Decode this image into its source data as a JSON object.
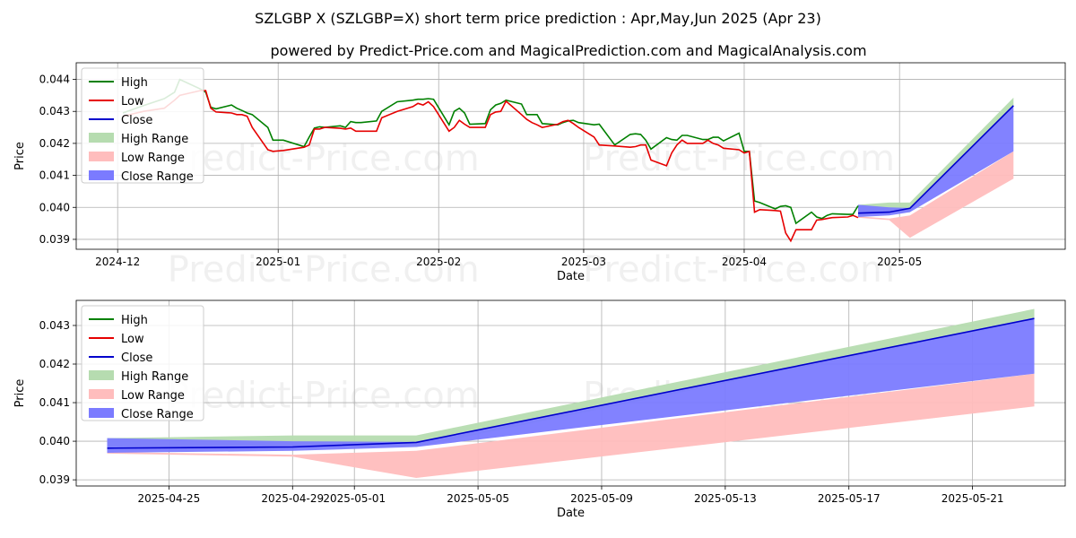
{
  "title": "SZLGBP X (SZLGBP=X) short term price prediction : Apr,May,Jun 2025 (Apr 23)",
  "subtitle": "powered by Predict-Price.com and MagicalPrediction.com and MagicalAnalysis.com",
  "watermark": "Predict-Price.com",
  "colors": {
    "high": "#008000",
    "low": "#e60000",
    "close": "#0000cc",
    "high_range": "#b6dcb0",
    "low_range": "#ffbdbd",
    "close_range": "#7b7bff"
  },
  "chart_data": [
    {
      "type": "line",
      "xlabel": "Date",
      "ylabel": "Price",
      "xticks": [
        "2024-12",
        "2025-01",
        "2025-02",
        "2025-03",
        "2025-04",
        "2025-05"
      ],
      "yticks": [
        "0.039",
        "0.040",
        "0.041",
        "0.042",
        "0.043",
        "0.044"
      ],
      "xlim": [
        "2024-11-23",
        "2025-06-02"
      ],
      "ylim": [
        0.03869,
        0.04452
      ],
      "grid": true,
      "legend": "top-left",
      "legend_entries": [
        "High",
        "Low",
        "Close",
        "High Range",
        "Low Range",
        "Close Range"
      ],
      "series": [
        {
          "name": "High",
          "x": [
            "2024-12-02",
            "2024-12-06",
            "2024-12-10",
            "2024-12-12",
            "2024-12-13",
            "2024-12-17",
            "2024-12-18",
            "2024-12-19",
            "2024-12-20",
            "2024-12-23",
            "2024-12-24",
            "2024-12-25",
            "2024-12-26",
            "2024-12-27",
            "2024-12-30",
            "2024-12-31",
            "2025-01-02",
            "2025-01-06",
            "2025-01-07",
            "2025-01-08",
            "2025-01-09",
            "2025-01-10",
            "2025-01-13",
            "2025-01-14",
            "2025-01-15",
            "2025-01-16",
            "2025-01-17",
            "2025-01-20",
            "2025-01-21",
            "2025-01-24",
            "2025-01-27",
            "2025-01-28",
            "2025-01-29",
            "2025-01-30",
            "2025-01-31",
            "2025-02-03",
            "2025-02-04",
            "2025-02-05",
            "2025-02-06",
            "2025-02-07",
            "2025-02-10",
            "2025-02-11",
            "2025-02-12",
            "2025-02-13",
            "2025-02-14",
            "2025-02-17",
            "2025-02-18",
            "2025-02-19",
            "2025-02-20",
            "2025-02-21",
            "2025-02-24",
            "2025-02-25",
            "2025-02-26",
            "2025-02-27",
            "2025-02-28",
            "2025-03-03",
            "2025-03-04",
            "2025-03-07",
            "2025-03-10",
            "2025-03-11",
            "2025-03-12",
            "2025-03-13",
            "2025-03-14",
            "2025-03-17",
            "2025-03-18",
            "2025-03-19",
            "2025-03-20",
            "2025-03-21",
            "2025-03-24",
            "2025-03-25",
            "2025-03-26",
            "2025-03-27",
            "2025-03-28",
            "2025-03-31",
            "2025-04-01",
            "2025-04-02",
            "2025-04-03",
            "2025-04-04",
            "2025-04-07",
            "2025-04-08",
            "2025-04-09",
            "2025-04-10",
            "2025-04-11",
            "2025-04-14",
            "2025-04-15",
            "2025-04-16",
            "2025-04-17",
            "2025-04-18",
            "2025-04-21",
            "2025-04-22",
            "2025-04-23"
          ],
          "values": [
            0.04295,
            0.04318,
            0.0434,
            0.0436,
            0.044,
            0.0437,
            0.0436,
            0.04313,
            0.04308,
            0.0432,
            0.0431,
            0.04303,
            0.04295,
            0.0429,
            0.0425,
            0.0421,
            0.0421,
            0.0419,
            0.0422,
            0.04248,
            0.04252,
            0.0425,
            0.04255,
            0.0425,
            0.04268,
            0.04265,
            0.04265,
            0.0427,
            0.043,
            0.0433,
            0.04335,
            0.04338,
            0.04338,
            0.0434,
            0.04338,
            0.04258,
            0.043,
            0.0431,
            0.04295,
            0.0426,
            0.04262,
            0.04305,
            0.0432,
            0.04325,
            0.04335,
            0.04323,
            0.0429,
            0.0429,
            0.0429,
            0.04262,
            0.04258,
            0.04265,
            0.0427,
            0.04272,
            0.04265,
            0.04258,
            0.0426,
            0.04195,
            0.04228,
            0.0423,
            0.04228,
            0.0421,
            0.04182,
            0.04218,
            0.04212,
            0.0421,
            0.04225,
            0.04225,
            0.04212,
            0.04212,
            0.04219,
            0.04219,
            0.04208,
            0.04232,
            0.04175,
            0.04175,
            0.0402,
            0.04015,
            0.03995,
            0.04003,
            0.04005,
            0.04,
            0.0395,
            0.03985,
            0.0397,
            0.03965,
            0.03975,
            0.0398,
            0.03978,
            0.03978,
            0.04005
          ]
        },
        {
          "name": "Low",
          "x": [
            "2024-12-02",
            "2024-12-06",
            "2024-12-10",
            "2024-12-12",
            "2024-12-13",
            "2024-12-17",
            "2024-12-18",
            "2024-12-19",
            "2024-12-20",
            "2024-12-23",
            "2024-12-24",
            "2024-12-25",
            "2024-12-26",
            "2024-12-27",
            "2024-12-30",
            "2024-12-31",
            "2025-01-02",
            "2025-01-06",
            "2025-01-07",
            "2025-01-08",
            "2025-01-09",
            "2025-01-10",
            "2025-01-13",
            "2025-01-14",
            "2025-01-15",
            "2025-01-16",
            "2025-01-17",
            "2025-01-20",
            "2025-01-21",
            "2025-01-24",
            "2025-01-27",
            "2025-01-28",
            "2025-01-29",
            "2025-01-30",
            "2025-01-31",
            "2025-02-03",
            "2025-02-04",
            "2025-02-05",
            "2025-02-06",
            "2025-02-07",
            "2025-02-10",
            "2025-02-11",
            "2025-02-12",
            "2025-02-13",
            "2025-02-14",
            "2025-02-17",
            "2025-02-18",
            "2025-02-19",
            "2025-02-20",
            "2025-02-21",
            "2025-02-24",
            "2025-02-25",
            "2025-02-26",
            "2025-02-27",
            "2025-02-28",
            "2025-03-03",
            "2025-03-04",
            "2025-03-07",
            "2025-03-10",
            "2025-03-11",
            "2025-03-12",
            "2025-03-13",
            "2025-03-14",
            "2025-03-17",
            "2025-03-18",
            "2025-03-19",
            "2025-03-20",
            "2025-03-21",
            "2025-03-24",
            "2025-03-25",
            "2025-03-26",
            "2025-03-27",
            "2025-03-28",
            "2025-03-31",
            "2025-04-01",
            "2025-04-02",
            "2025-04-03",
            "2025-04-04",
            "2025-04-07",
            "2025-04-08",
            "2025-04-09",
            "2025-04-10",
            "2025-04-11",
            "2025-04-14",
            "2025-04-15",
            "2025-04-16",
            "2025-04-17",
            "2025-04-18",
            "2025-04-21",
            "2025-04-22",
            "2025-04-23"
          ],
          "values": [
            0.04285,
            0.043,
            0.0431,
            0.04335,
            0.0435,
            0.04365,
            0.04365,
            0.0431,
            0.04298,
            0.04295,
            0.0429,
            0.0429,
            0.04285,
            0.0425,
            0.0418,
            0.04175,
            0.04178,
            0.04188,
            0.04195,
            0.04245,
            0.04245,
            0.0425,
            0.04247,
            0.04245,
            0.04248,
            0.04238,
            0.04238,
            0.04238,
            0.0428,
            0.043,
            0.04315,
            0.04325,
            0.0432,
            0.0433,
            0.04315,
            0.04238,
            0.0425,
            0.04272,
            0.0426,
            0.0425,
            0.0425,
            0.0429,
            0.04298,
            0.043,
            0.04332,
            0.0429,
            0.04275,
            0.04265,
            0.04258,
            0.0425,
            0.0426,
            0.04268,
            0.04272,
            0.04262,
            0.0425,
            0.0422,
            0.04195,
            0.04192,
            0.04188,
            0.0419,
            0.04195,
            0.04195,
            0.04148,
            0.0413,
            0.0417,
            0.04195,
            0.0421,
            0.042,
            0.042,
            0.0421,
            0.042,
            0.04195,
            0.04185,
            0.0418,
            0.0417,
            0.04175,
            0.03985,
            0.03993,
            0.0399,
            0.03988,
            0.0392,
            0.03895,
            0.0393,
            0.0393,
            0.0396,
            0.03962,
            0.03965,
            0.03968,
            0.0397,
            0.03975,
            0.03968
          ]
        }
      ]
    },
    {
      "type": "area",
      "xlabel": "Date",
      "ylabel": "Price",
      "xticks": [
        "2025-04-25",
        "2025-04-29",
        "2025-05-01",
        "2025-05-05",
        "2025-05-09",
        "2025-05-13",
        "2025-05-17",
        "2025-05-21"
      ],
      "yticks": [
        "0.039",
        "0.040",
        "0.041",
        "0.042",
        "0.043"
      ],
      "xlim": [
        "2025-04-22",
        "2025-05-24"
      ],
      "ylim": [
        0.03884,
        0.04365
      ],
      "grid": true,
      "legend": "top-left",
      "legend_entries": [
        "High",
        "Low",
        "Close",
        "High Range",
        "Low Range",
        "Close Range"
      ],
      "series": [
        {
          "name": "High Range",
          "x": [
            "2025-04-23",
            "2025-04-29",
            "2025-05-03",
            "2025-05-23"
          ],
          "upper": [
            0.04008,
            0.04015,
            0.04015,
            0.04343
          ],
          "lower": [
            0.0398,
            0.03985,
            0.03985,
            0.04315
          ]
        },
        {
          "name": "Low Range",
          "x": [
            "2025-04-23",
            "2025-04-29",
            "2025-05-03",
            "2025-05-23"
          ],
          "upper": [
            0.03972,
            0.03965,
            0.03975,
            0.04175
          ],
          "lower": [
            0.03968,
            0.0396,
            0.03905,
            0.0409
          ]
        },
        {
          "name": "Close Range",
          "x": [
            "2025-04-23",
            "2025-04-29",
            "2025-05-03",
            "2025-05-23"
          ],
          "upper": [
            0.04008,
            0.04,
            0.03998,
            0.0432
          ],
          "lower": [
            0.0397,
            0.03975,
            0.03985,
            0.04175
          ]
        },
        {
          "name": "Close",
          "x": [
            "2025-04-23",
            "2025-04-29",
            "2025-05-03",
            "2025-05-23"
          ],
          "values": [
            0.03982,
            0.03985,
            0.03997,
            0.04318
          ]
        }
      ]
    }
  ]
}
